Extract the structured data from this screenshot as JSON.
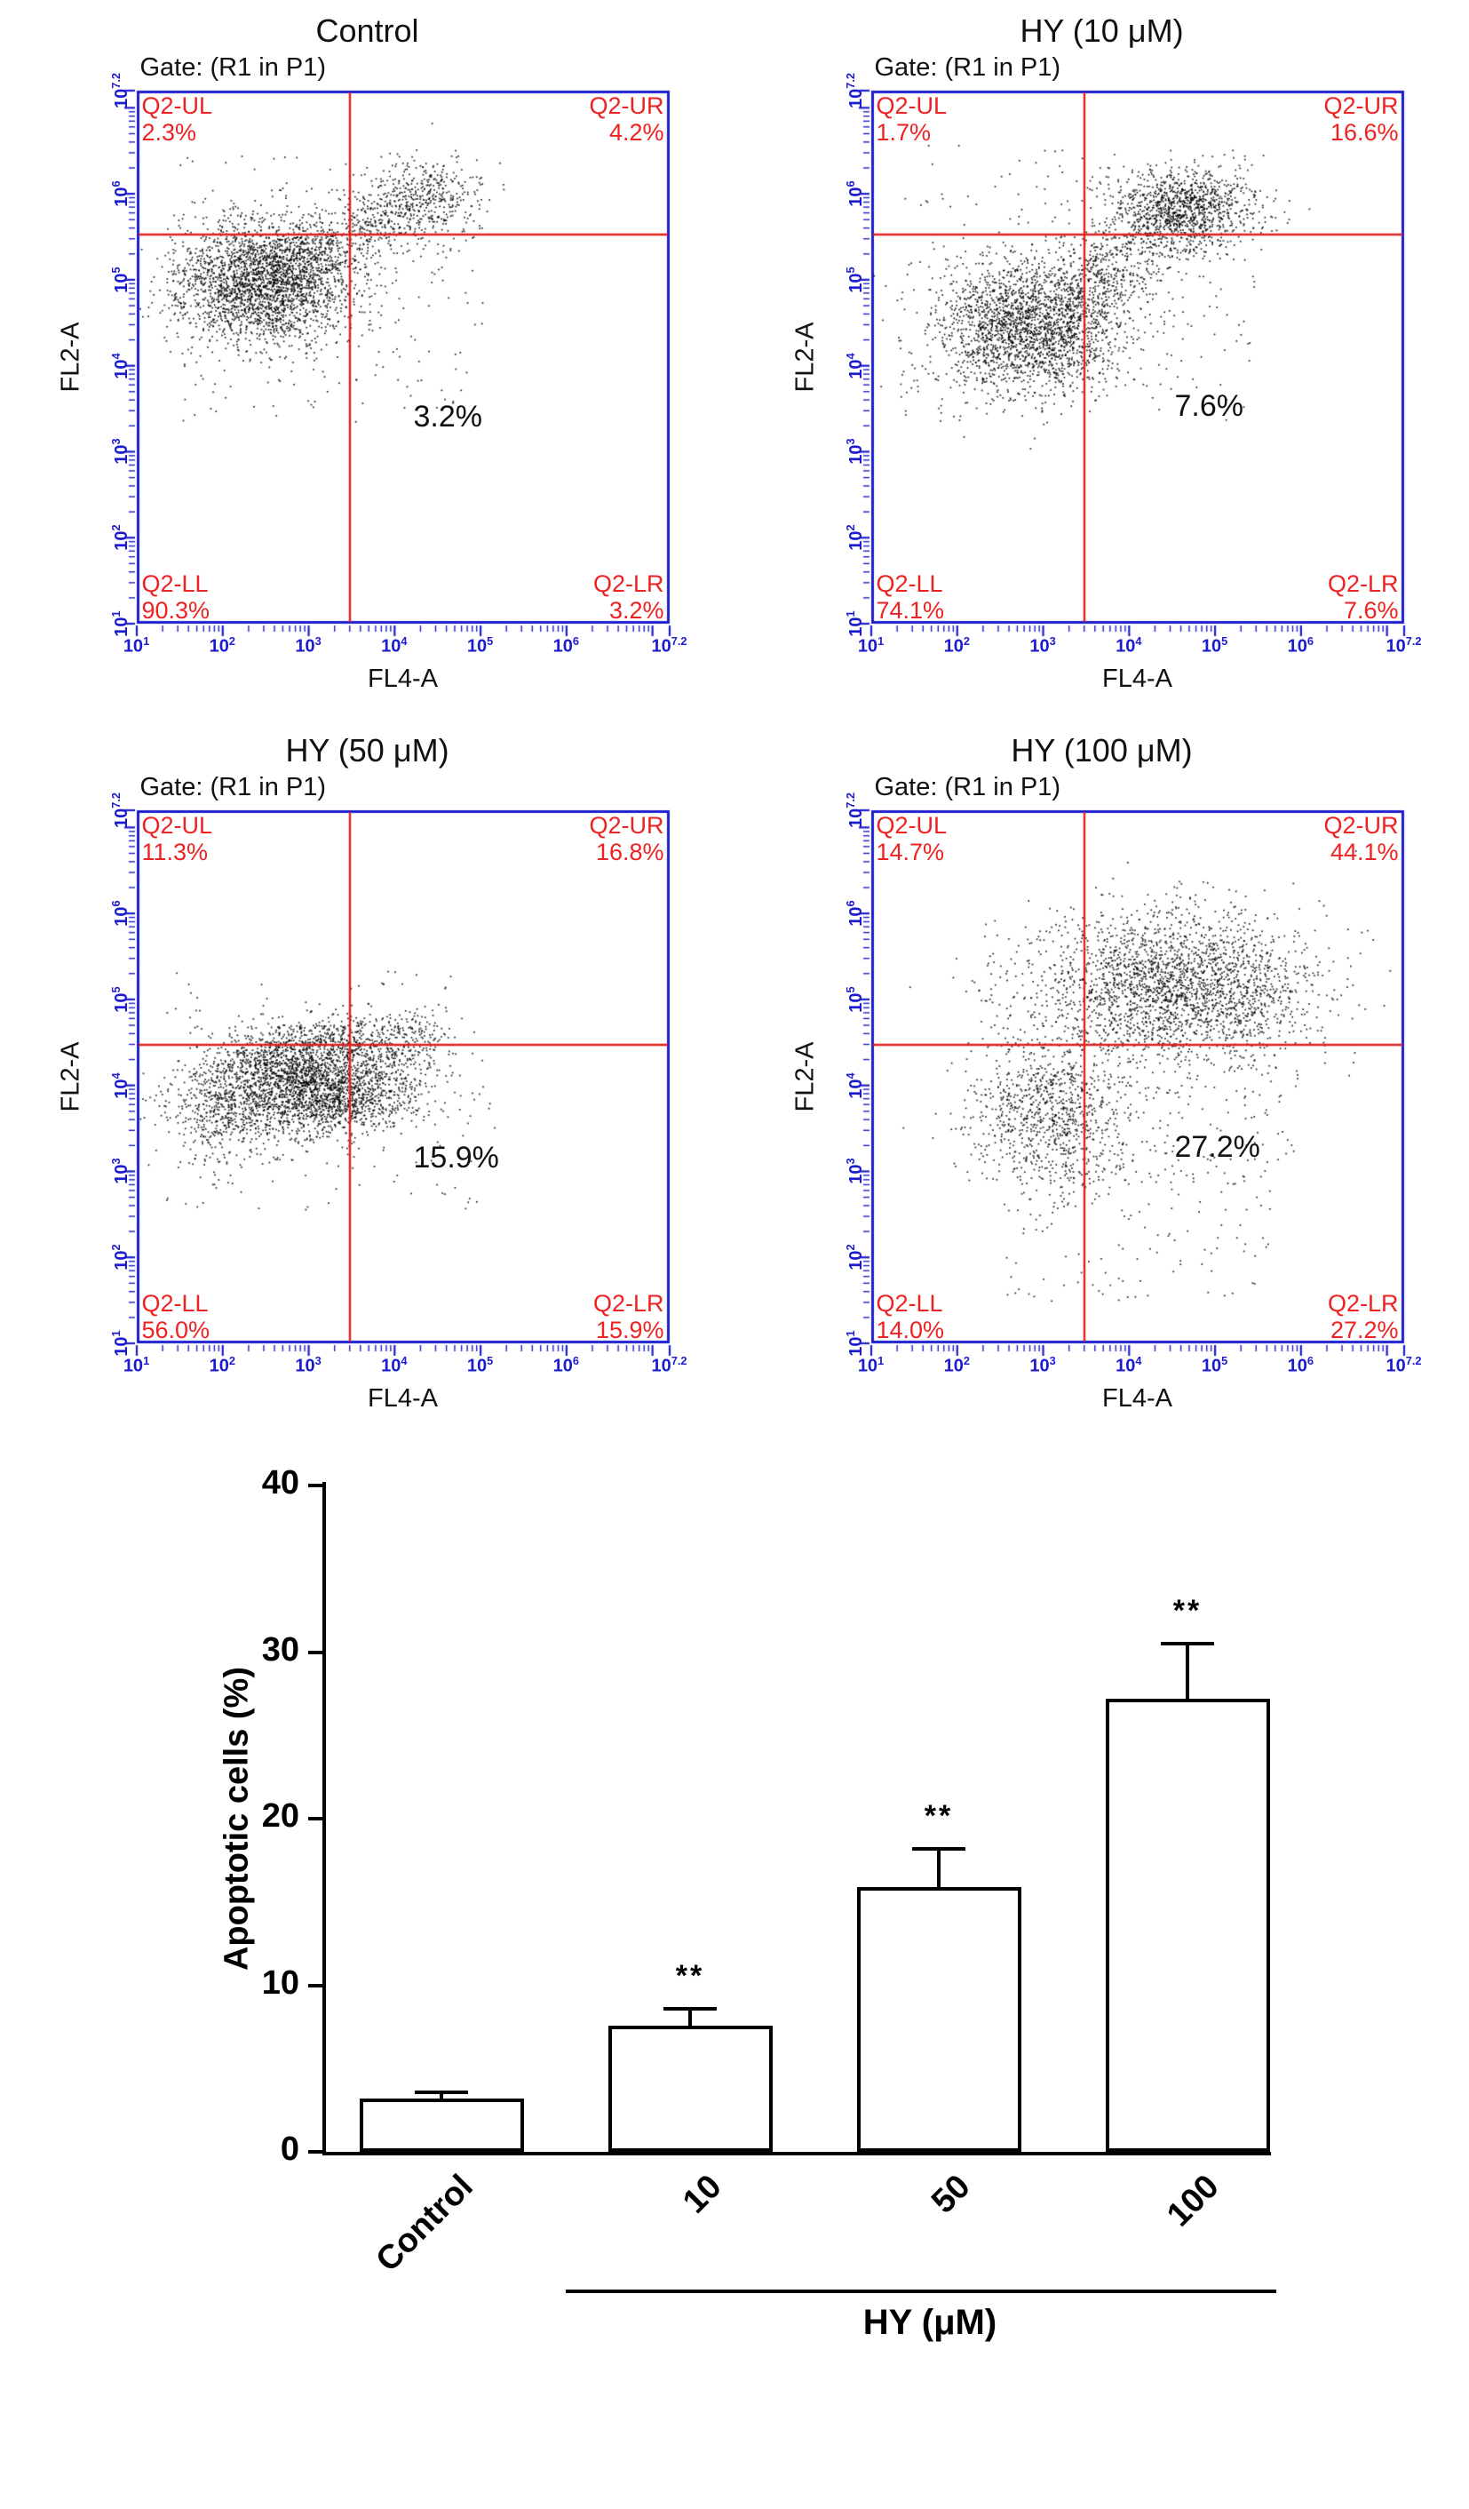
{
  "page": {
    "background": "#ffffff"
  },
  "colors": {
    "axis_blue": "#1c1ccf",
    "quadrant_red": "#ee2222",
    "gate_red": "#e02020",
    "dot_black": "#000000",
    "bar_fill": "#ffffff",
    "bar_border": "#000000"
  },
  "flow_axes": {
    "scale": "log10",
    "range_exponents": [
      1,
      7.2
    ],
    "tick_exponents": [
      1,
      2,
      3,
      4,
      5,
      6,
      7.2
    ]
  },
  "chart_data": [
    {
      "type": "scatter",
      "title": "Control",
      "gate_label": "Gate: (R1 in P1)",
      "xlabel": "FL4-A",
      "ylabel": "FL2-A",
      "quadrants": [
        {
          "label": "Q2-UL",
          "value": "2.3%"
        },
        {
          "label": "Q2-UR",
          "value": "4.2%"
        },
        {
          "label": "Q2-LL",
          "value": "90.3%"
        },
        {
          "label": "Q2-LR",
          "value": "3.2%"
        }
      ],
      "annotation": "3.2%",
      "annotation_pos": {
        "fx": 0.52,
        "fy": 0.58
      },
      "crosshair": {
        "fx": 0.4,
        "fy": 0.27
      },
      "clusters": [
        {
          "type": "gauss",
          "n": 2600,
          "cx": 0.235,
          "cy": 0.36,
          "sx": 0.085,
          "sy": 0.06
        },
        {
          "type": "band",
          "n": 650,
          "x1": 0.27,
          "y1": 0.33,
          "x2": 0.55,
          "y2": 0.19,
          "s": 0.035
        },
        {
          "type": "gauss",
          "n": 280,
          "cx": 0.55,
          "cy": 0.2,
          "sx": 0.055,
          "sy": 0.04
        },
        {
          "type": "uniform",
          "n": 170,
          "x1": 0.08,
          "y1": 0.12,
          "x2": 0.65,
          "y2": 0.62
        }
      ]
    },
    {
      "type": "scatter",
      "title": "HY (10 μM)",
      "gate_label": "Gate: (R1 in P1)",
      "xlabel": "FL4-A",
      "ylabel": "FL2-A",
      "quadrants": [
        {
          "label": "Q2-UL",
          "value": "1.7%"
        },
        {
          "label": "Q2-UR",
          "value": "16.6%"
        },
        {
          "label": "Q2-LL",
          "value": "74.1%"
        },
        {
          "label": "Q2-LR",
          "value": "7.6%"
        }
      ],
      "annotation": "7.6%",
      "annotation_pos": {
        "fx": 0.57,
        "fy": 0.56
      },
      "crosshair": {
        "fx": 0.4,
        "fy": 0.27
      },
      "clusters": [
        {
          "type": "gauss",
          "n": 2300,
          "cx": 0.3,
          "cy": 0.44,
          "sx": 0.09,
          "sy": 0.065
        },
        {
          "type": "gauss",
          "n": 1100,
          "cx": 0.59,
          "cy": 0.22,
          "sx": 0.065,
          "sy": 0.038
        },
        {
          "type": "band",
          "n": 500,
          "x1": 0.38,
          "y1": 0.38,
          "x2": 0.56,
          "y2": 0.25,
          "s": 0.04
        },
        {
          "type": "uniform",
          "n": 220,
          "x1": 0.06,
          "y1": 0.1,
          "x2": 0.72,
          "y2": 0.62
        }
      ]
    },
    {
      "type": "scatter",
      "title": "HY (50 μM)",
      "gate_label": "Gate: (R1 in P1)",
      "xlabel": "FL4-A",
      "ylabel": "FL2-A",
      "quadrants": [
        {
          "label": "Q2-UL",
          "value": "11.3%"
        },
        {
          "label": "Q2-UR",
          "value": "16.8%"
        },
        {
          "label": "Q2-LL",
          "value": "56.0%"
        },
        {
          "label": "Q2-LR",
          "value": "15.9%"
        }
      ],
      "annotation": "15.9%",
      "annotation_pos": {
        "fx": 0.52,
        "fy": 0.62
      },
      "crosshair": {
        "fx": 0.4,
        "fy": 0.44
      },
      "clusters": [
        {
          "type": "gauss",
          "n": 2500,
          "cx": 0.33,
          "cy": 0.52,
          "sx": 0.1,
          "sy": 0.045
        },
        {
          "type": "band",
          "n": 800,
          "x1": 0.18,
          "y1": 0.46,
          "x2": 0.55,
          "y2": 0.42,
          "s": 0.03
        },
        {
          "type": "gauss",
          "n": 350,
          "cx": 0.16,
          "cy": 0.56,
          "sx": 0.05,
          "sy": 0.05
        },
        {
          "type": "uniform",
          "n": 140,
          "x1": 0.05,
          "y1": 0.3,
          "x2": 0.65,
          "y2": 0.75
        }
      ]
    },
    {
      "type": "scatter",
      "title": "HY (100 μM)",
      "gate_label": "Gate: (R1 in P1)",
      "xlabel": "FL4-A",
      "ylabel": "FL2-A",
      "quadrants": [
        {
          "label": "Q2-UL",
          "value": "14.7%"
        },
        {
          "label": "Q2-UR",
          "value": "44.1%"
        },
        {
          "label": "Q2-LL",
          "value": "14.0%"
        },
        {
          "label": "Q2-LR",
          "value": "27.2%"
        }
      ],
      "annotation": "27.2%",
      "annotation_pos": {
        "fx": 0.57,
        "fy": 0.6
      },
      "crosshair": {
        "fx": 0.4,
        "fy": 0.44
      },
      "clusters": [
        {
          "type": "gauss",
          "n": 2300,
          "cx": 0.57,
          "cy": 0.33,
          "sx": 0.13,
          "sy": 0.07
        },
        {
          "type": "gauss",
          "n": 850,
          "cx": 0.33,
          "cy": 0.57,
          "sx": 0.075,
          "sy": 0.065
        },
        {
          "type": "uniform",
          "n": 450,
          "x1": 0.2,
          "y1": 0.2,
          "x2": 0.8,
          "y2": 0.7
        },
        {
          "type": "uniform",
          "n": 120,
          "x1": 0.25,
          "y1": 0.65,
          "x2": 0.75,
          "y2": 0.92
        }
      ]
    },
    {
      "type": "bar",
      "ylabel": "Apoptotic cells (%)",
      "ylim": [
        0,
        40
      ],
      "yticks": [
        0,
        10,
        20,
        30,
        40
      ],
      "categories": [
        "Control",
        "10",
        "50",
        "100"
      ],
      "values": [
        3.2,
        7.6,
        15.9,
        27.2
      ],
      "errors": [
        0.4,
        1.0,
        2.3,
        3.3
      ],
      "significance": [
        "",
        "**",
        "**",
        "**"
      ],
      "group_label": "HY (μM)",
      "group_range": [
        1,
        3
      ]
    }
  ]
}
